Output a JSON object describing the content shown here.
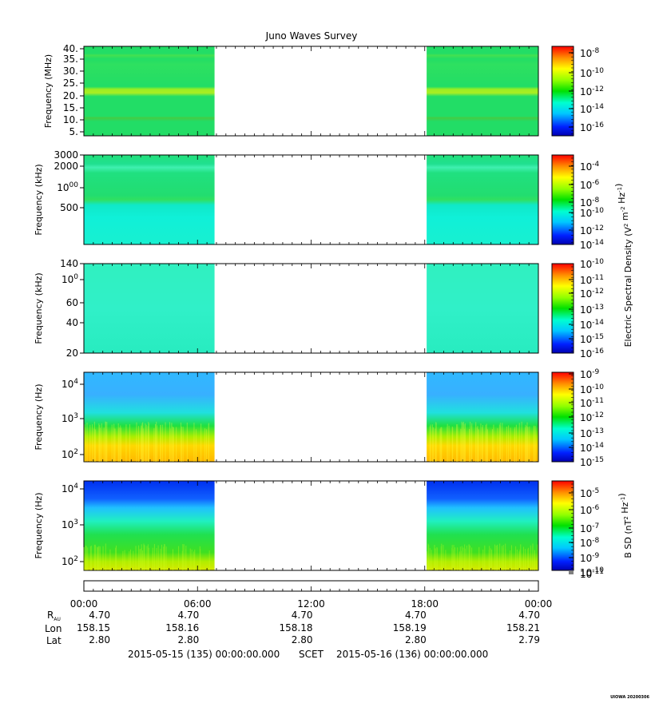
{
  "chart_data": {
    "type": "heatmap",
    "title": "Juno Waves Survey",
    "x_ticks": [
      "00:00",
      "06:00",
      "12:00",
      "18:00",
      "00:00"
    ],
    "data_coverage_hours": [
      [
        0,
        6.9
      ],
      [
        18.1,
        24
      ]
    ],
    "panels": [
      {
        "id": "hfr-mhz",
        "ylabel": "Frequency (MHz)",
        "y_ticks": [
          "40.",
          "35.",
          "30.",
          "25.",
          "20.",
          "15.",
          "10.",
          "5."
        ],
        "colorbar_ticks": [
          "10-8",
          "10-10",
          "10-12",
          "10-14",
          "10-16"
        ],
        "colorbar_label": ""
      },
      {
        "id": "hfr-khz",
        "ylabel": "Frequency (kHz)",
        "y_ticks": [
          "3000",
          "2000",
          "1000",
          "500"
        ],
        "colorbar_ticks": [
          "10-4",
          "10-6",
          "10-8",
          "10-10",
          "10-12",
          "10-14"
        ],
        "colorbar_label": "Electric Spectral Density (V2 m-2 Hz-1)"
      },
      {
        "id": "lfr-khz",
        "ylabel": "Frequency (kHz)",
        "y_ticks": [
          "140",
          "100",
          "60",
          "40",
          "20"
        ],
        "colorbar_ticks": [
          "10-10",
          "10-11",
          "10-12",
          "10-13",
          "10-14",
          "10-15",
          "10-16"
        ],
        "colorbar_label": ""
      },
      {
        "id": "lfr-hz-e",
        "ylabel": "Frequency (Hz)",
        "y_ticks": [
          "104",
          "103",
          "102"
        ],
        "colorbar_ticks": [
          "10-9",
          "10-10",
          "10-11",
          "10-12",
          "10-13",
          "10-14",
          "10-15"
        ],
        "colorbar_label": ""
      },
      {
        "id": "lfr-hz-b",
        "ylabel": "Frequency (Hz)",
        "y_ticks": [
          "104",
          "103",
          "102"
        ],
        "colorbar_ticks": [
          "10-5",
          "10-6",
          "10-7",
          "10-8",
          "10-9",
          "10-10",
          "10-11"
        ],
        "colorbar_label": "B SD (nT2 Hz-1)"
      }
    ],
    "ephemeris": {
      "rows": [
        {
          "label": "RAU",
          "values": [
            "4.70",
            "4.70",
            "4.70",
            "4.70",
            "4.70"
          ]
        },
        {
          "label": "Lon",
          "values": [
            "158.15",
            "158.16",
            "158.18",
            "158.19",
            "158.21"
          ]
        },
        {
          "label": "Lat",
          "values": [
            "2.80",
            "2.80",
            "2.80",
            "2.80",
            "2.79"
          ]
        }
      ]
    },
    "footer": {
      "start": "2015-05-15 (135) 00:00:00.000",
      "scet": "SCET",
      "end": "2015-05-16 (136) 00:00:00.000"
    },
    "watermark": "UIOWA 20200306"
  }
}
